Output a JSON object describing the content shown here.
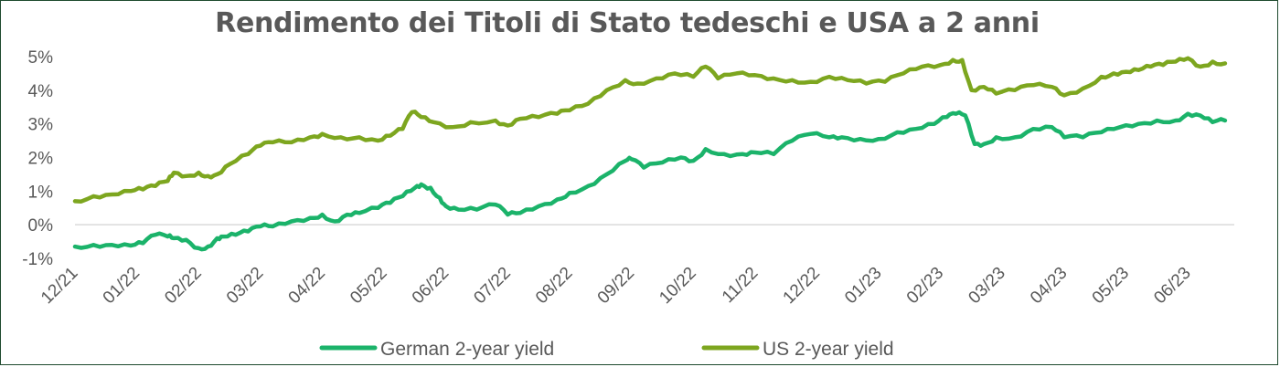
{
  "chart_data": {
    "type": "line",
    "title": "Rendimento dei Titoli di Stato tedeschi e USA a 2 anni",
    "xlabel": "",
    "ylabel": "",
    "x_ticks": [
      "12/21",
      "01/22",
      "02/22",
      "03/22",
      "04/22",
      "05/22",
      "06/22",
      "07/22",
      "08/22",
      "09/22",
      "10/22",
      "11/22",
      "12/22",
      "01/23",
      "02/23",
      "03/23",
      "04/23",
      "05/23",
      "06/23"
    ],
    "x_range": [
      0,
      18.75
    ],
    "y_ticks": [
      "-1%",
      "0%",
      "1%",
      "2%",
      "3%",
      "4%",
      "5%"
    ],
    "ylim": [
      -1,
      5
    ],
    "legend_position": "bottom",
    "grid": false,
    "series": [
      {
        "name": "German 2-year yield",
        "color": "#1bb36a",
        "x": [
          0,
          0.3,
          0.6,
          0.9,
          1.1,
          1.3,
          1.5,
          1.6,
          1.8,
          2.0,
          2.15,
          2.3,
          2.4,
          2.6,
          2.8,
          3.0,
          3.2,
          3.5,
          3.8,
          4.0,
          4.2,
          4.4,
          4.6,
          4.9,
          5.1,
          5.3,
          5.5,
          5.6,
          5.75,
          5.9,
          6.0,
          6.2,
          6.5,
          6.8,
          7.0,
          7.2,
          7.5,
          7.8,
          8.0,
          8.3,
          8.6,
          8.9,
          9.0,
          9.2,
          9.5,
          9.8,
          10.0,
          10.2,
          10.5,
          10.8,
          11.0,
          11.3,
          11.6,
          11.9,
          12.2,
          12.4,
          12.7,
          13.0,
          13.3,
          13.6,
          13.9,
          14.1,
          14.25,
          14.4,
          14.55,
          14.7,
          14.9,
          15.2,
          15.5,
          15.8,
          16.0,
          16.3,
          16.6,
          16.9,
          17.2,
          17.5,
          17.8,
          18.0,
          18.2,
          18.4,
          18.6
        ],
        "values": [
          -0.65,
          -0.6,
          -0.6,
          -0.62,
          -0.55,
          -0.3,
          -0.35,
          -0.4,
          -0.45,
          -0.7,
          -0.65,
          -0.4,
          -0.35,
          -0.3,
          -0.2,
          -0.05,
          -0.05,
          0.1,
          0.2,
          0.3,
          0.1,
          0.3,
          0.35,
          0.5,
          0.65,
          0.85,
          1.1,
          1.2,
          1.1,
          0.8,
          0.55,
          0.45,
          0.45,
          0.6,
          0.3,
          0.35,
          0.55,
          0.75,
          0.95,
          1.15,
          1.5,
          1.9,
          1.95,
          1.7,
          1.85,
          2.0,
          1.9,
          2.25,
          2.1,
          2.1,
          2.15,
          2.1,
          2.5,
          2.7,
          2.6,
          2.6,
          2.55,
          2.55,
          2.75,
          2.85,
          3.0,
          3.2,
          3.3,
          3.25,
          2.4,
          2.4,
          2.6,
          2.6,
          2.85,
          2.9,
          2.6,
          2.6,
          2.75,
          2.9,
          3.0,
          3.1,
          3.1,
          3.3,
          3.25,
          3.05,
          3.1
        ]
      },
      {
        "name": "US 2-year yield",
        "color": "#7da61f",
        "x": [
          0,
          0.3,
          0.6,
          0.9,
          1.1,
          1.3,
          1.5,
          1.6,
          1.8,
          2.0,
          2.15,
          2.3,
          2.5,
          2.8,
          3.0,
          3.2,
          3.5,
          3.8,
          4.0,
          4.3,
          4.6,
          4.9,
          5.1,
          5.3,
          5.45,
          5.6,
          5.8,
          6.1,
          6.4,
          6.8,
          7.0,
          7.2,
          7.5,
          7.8,
          8.0,
          8.3,
          8.6,
          8.9,
          9.1,
          9.4,
          9.7,
          10.0,
          10.2,
          10.4,
          10.7,
          11.0,
          11.3,
          11.6,
          11.9,
          12.2,
          12.5,
          12.8,
          13.1,
          13.4,
          13.7,
          14.0,
          14.2,
          14.35,
          14.5,
          14.7,
          14.9,
          15.2,
          15.5,
          15.8,
          16.0,
          16.3,
          16.6,
          16.8,
          17.0,
          17.2,
          17.4,
          17.6,
          17.8,
          18.0,
          18.2,
          18.4,
          18.6
        ],
        "values": [
          0.7,
          0.85,
          0.9,
          1.0,
          1.05,
          1.15,
          1.3,
          1.55,
          1.45,
          1.55,
          1.45,
          1.5,
          1.8,
          2.1,
          2.35,
          2.45,
          2.45,
          2.6,
          2.7,
          2.6,
          2.6,
          2.5,
          2.65,
          2.85,
          3.35,
          3.2,
          3.05,
          2.9,
          3.05,
          3.1,
          2.95,
          3.15,
          3.2,
          3.3,
          3.4,
          3.6,
          4.0,
          4.3,
          4.2,
          4.35,
          4.5,
          4.4,
          4.7,
          4.35,
          4.5,
          4.45,
          4.35,
          4.3,
          4.25,
          4.4,
          4.3,
          4.2,
          4.25,
          4.5,
          4.7,
          4.75,
          4.9,
          4.9,
          4.0,
          4.1,
          3.9,
          4.0,
          4.15,
          4.1,
          3.85,
          4.05,
          4.4,
          4.5,
          4.55,
          4.6,
          4.7,
          4.75,
          4.85,
          4.95,
          4.7,
          4.85,
          4.8
        ]
      }
    ]
  }
}
